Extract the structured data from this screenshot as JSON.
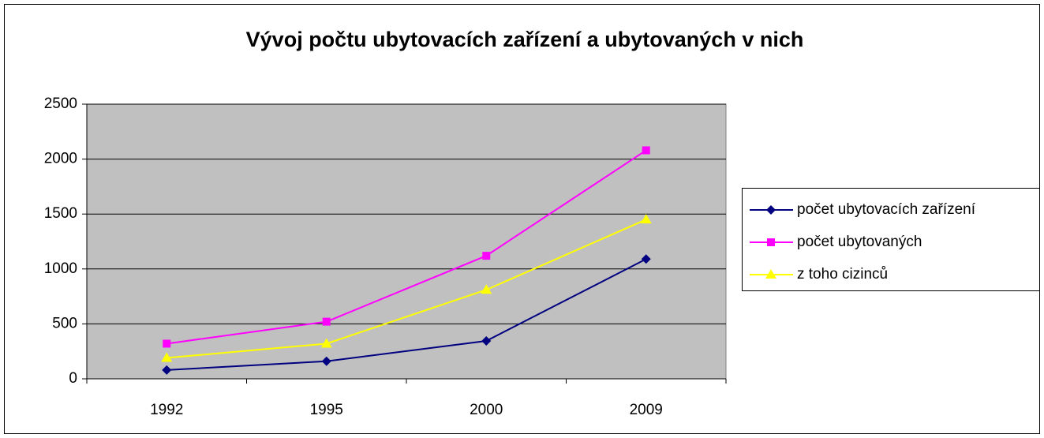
{
  "chart_data": {
    "type": "line",
    "title": "Vývoj počtu ubytovacích zařízení a ubytovaných v nich",
    "categories": [
      "1992",
      "1995",
      "2000",
      "2009"
    ],
    "series": [
      {
        "name": "počet ubytovacích zařízení",
        "color": "#000080",
        "marker": "diamond",
        "values": [
          80,
          160,
          345,
          1090
        ]
      },
      {
        "name": "počet ubytovaných",
        "color": "#ff00ff",
        "marker": "square",
        "values": [
          320,
          520,
          1120,
          2080
        ]
      },
      {
        "name": "z toho cizinců",
        "color": "#ffff00",
        "marker": "triangle",
        "values": [
          190,
          320,
          810,
          1450
        ]
      }
    ],
    "ylim": [
      0,
      2500
    ],
    "yticks": [
      0,
      500,
      1000,
      1500,
      2000,
      2500
    ],
    "grid": true,
    "legend": "right",
    "plot_background": "#c0c0c0"
  }
}
